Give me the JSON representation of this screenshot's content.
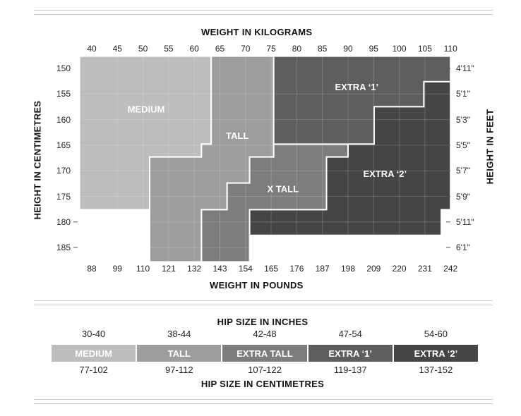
{
  "chart_data": [
    {
      "type": "heatmap",
      "title": "",
      "x_top_label": "WEIGHT IN KILOGRAMS",
      "x_top_ticks": [
        "40",
        "45",
        "50",
        "55",
        "60",
        "65",
        "70",
        "75",
        "80",
        "85",
        "90",
        "95",
        "100",
        "105",
        "110"
      ],
      "x_bottom_label": "WEIGHT IN POUNDS",
      "x_bottom_ticks": [
        "88",
        "99",
        "110",
        "121",
        "132",
        "143",
        "154",
        "165",
        "176",
        "187",
        "198",
        "209",
        "220",
        "231",
        "242"
      ],
      "y_left_label": "HEIGHT IN CENTIMETRES",
      "y_left_ticks": [
        "150",
        "155",
        "160",
        "165",
        "170",
        "175",
        "180",
        "185"
      ],
      "y_right_label": "HEIGHT IN FEET",
      "y_right_ticks": [
        "4'11\"",
        "5'1\"",
        "5'3\"",
        "5'5\"",
        "5'7\"",
        "5'9\"",
        "5'11\"",
        "6'1\""
      ],
      "xlim_kg": [
        40,
        110
      ],
      "ylim_cm": [
        150,
        185
      ],
      "regions": [
        {
          "name": "MEDIUM",
          "color": "#bdbdbf",
          "label_color": "#ffffff",
          "polygon_kg_cm": [
            [
              37.6,
              147.6
            ],
            [
              63.3,
              147.6
            ],
            [
              63.3,
              164.8
            ],
            [
              61.4,
              164.8
            ],
            [
              61.4,
              167.3
            ],
            [
              51.3,
              167.3
            ],
            [
              51.3,
              177.6
            ],
            [
              37.6,
              177.6
            ]
          ]
        },
        {
          "name": "TALL",
          "color": "#9d9d9f",
          "label_color": "#ffffff",
          "polygon_kg_cm": [
            [
              63.3,
              147.6
            ],
            [
              75.5,
              147.6
            ],
            [
              75.5,
              167.3
            ],
            [
              70.8,
              167.3
            ],
            [
              70.8,
              172.4
            ],
            [
              66.4,
              172.4
            ],
            [
              66.4,
              177.6
            ],
            [
              61.4,
              177.6
            ],
            [
              61.4,
              187.8
            ],
            [
              51.3,
              187.8
            ],
            [
              51.3,
              167.3
            ],
            [
              61.4,
              167.3
            ],
            [
              61.4,
              164.8
            ],
            [
              63.3,
              164.8
            ]
          ]
        },
        {
          "name": "X TALL",
          "color": "#7d7d7f",
          "label_color": "#ffffff",
          "polygon_kg_cm": [
            [
              75.5,
              164.8
            ],
            [
              90.0,
              164.8
            ],
            [
              90.0,
              167.3
            ],
            [
              85.8,
              167.3
            ],
            [
              85.8,
              177.6
            ],
            [
              70.8,
              177.6
            ],
            [
              70.8,
              187.8
            ],
            [
              61.4,
              187.8
            ],
            [
              61.4,
              177.6
            ],
            [
              66.4,
              177.6
            ],
            [
              66.4,
              172.4
            ],
            [
              70.8,
              172.4
            ],
            [
              70.8,
              167.3
            ],
            [
              75.5,
              167.3
            ]
          ]
        },
        {
          "name": "EXTRA ‘1’",
          "color": "#5e5e60",
          "label_color": "#ffffff",
          "polygon_kg_cm": [
            [
              75.5,
              147.6
            ],
            [
              110.0,
              147.6
            ],
            [
              110.0,
              152.6
            ],
            [
              104.8,
              152.6
            ],
            [
              104.8,
              157.5
            ],
            [
              95.1,
              157.5
            ],
            [
              95.1,
              164.8
            ],
            [
              75.5,
              164.8
            ]
          ]
        },
        {
          "name": "EXTRA ‘2’",
          "color": "#454547",
          "label_color": "#ffffff",
          "polygon_kg_cm": [
            [
              104.8,
              152.6
            ],
            [
              110.0,
              152.6
            ],
            [
              110.0,
              177.6
            ],
            [
              108.2,
              177.6
            ],
            [
              108.2,
              182.6
            ],
            [
              70.8,
              182.6
            ],
            [
              70.8,
              177.6
            ],
            [
              85.8,
              177.6
            ],
            [
              85.8,
              167.3
            ],
            [
              90.0,
              167.3
            ],
            [
              90.0,
              164.8
            ],
            [
              95.1,
              164.8
            ],
            [
              95.1,
              157.5
            ],
            [
              104.8,
              157.5
            ]
          ]
        }
      ]
    },
    {
      "type": "table",
      "title": "HIP SIZE IN INCHES",
      "bottom_label": "HIP SIZE IN CENTIMETRES",
      "sizes": [
        {
          "name": "MEDIUM",
          "inches": "30-40",
          "cm": "77-102",
          "color": "#bdbdbf"
        },
        {
          "name": "TALL",
          "inches": "38-44",
          "cm": "97-112",
          "color": "#9d9d9f"
        },
        {
          "name": "EXTRA TALL",
          "inches": "42-48",
          "cm": "107-122",
          "color": "#7d7d7f"
        },
        {
          "name": "EXTRA ‘1’",
          "inches": "47-54",
          "cm": "119-137",
          "color": "#5e5e60"
        },
        {
          "name": "EXTRA ‘2’",
          "inches": "54-60",
          "cm": "137-152",
          "color": "#454547"
        }
      ]
    }
  ]
}
